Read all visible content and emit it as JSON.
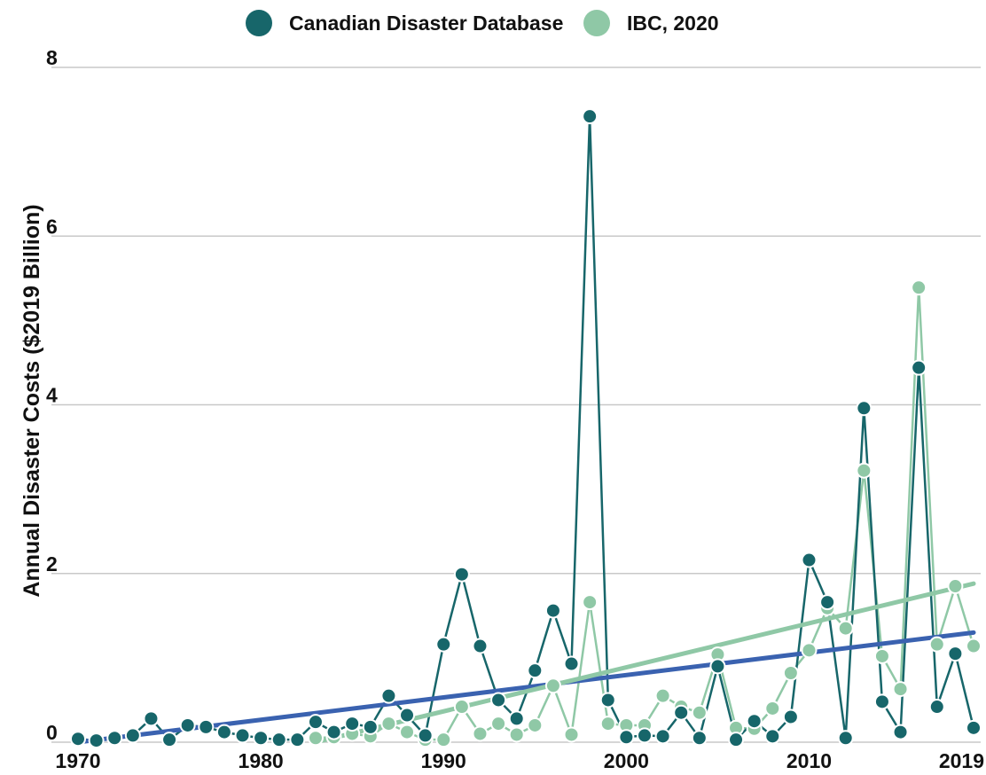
{
  "chart_data": {
    "type": "line",
    "title": "",
    "xlabel": "",
    "ylabel": "Annual Disaster Costs ($2019 Billion)",
    "xlim": [
      1970,
      2019
    ],
    "ylim": [
      0,
      8
    ],
    "x_ticks": [
      1970,
      1980,
      1990,
      2000,
      2010,
      2019
    ],
    "y_ticks": [
      0,
      2,
      4,
      6,
      8
    ],
    "grid": "horizontal",
    "legend_position": "top",
    "series": [
      {
        "name": "Canadian Disaster Database",
        "color": "#17666a",
        "x": [
          1970,
          1971,
          1972,
          1973,
          1974,
          1975,
          1976,
          1977,
          1978,
          1979,
          1980,
          1981,
          1982,
          1983,
          1984,
          1985,
          1986,
          1987,
          1988,
          1989,
          1990,
          1991,
          1992,
          1993,
          1994,
          1995,
          1996,
          1997,
          1998,
          1999,
          2000,
          2001,
          2002,
          2003,
          2004,
          2005,
          2006,
          2007,
          2008,
          2009,
          2010,
          2011,
          2012,
          2013,
          2014,
          2015,
          2016,
          2017,
          2018,
          2019
        ],
        "values": [
          0.04,
          0.02,
          0.05,
          0.08,
          0.28,
          0.03,
          0.2,
          0.18,
          0.12,
          0.08,
          0.05,
          0.03,
          0.03,
          0.24,
          0.12,
          0.22,
          0.18,
          0.55,
          0.32,
          0.08,
          1.16,
          1.99,
          1.14,
          0.5,
          0.28,
          0.85,
          1.56,
          0.93,
          7.42,
          0.5,
          0.06,
          0.08,
          0.07,
          0.35,
          0.05,
          0.9,
          0.03,
          0.25,
          0.07,
          0.3,
          2.16,
          1.66,
          0.05,
          3.96,
          0.48,
          0.12,
          4.44,
          0.42,
          1.05,
          0.17
        ]
      },
      {
        "name": "IBC, 2020",
        "color": "#8fc8a6",
        "x": [
          1983,
          1984,
          1985,
          1986,
          1987,
          1988,
          1989,
          1990,
          1991,
          1992,
          1993,
          1994,
          1995,
          1996,
          1997,
          1998,
          1999,
          2000,
          2001,
          2002,
          2003,
          2004,
          2005,
          2006,
          2007,
          2008,
          2009,
          2010,
          2011,
          2012,
          2013,
          2014,
          2015,
          2016,
          2017,
          2018,
          2019
        ],
        "values": [
          0.05,
          0.06,
          0.1,
          0.07,
          0.22,
          0.12,
          0.03,
          0.03,
          0.42,
          0.1,
          0.22,
          0.09,
          0.2,
          0.67,
          0.09,
          1.66,
          0.22,
          0.2,
          0.2,
          0.55,
          0.42,
          0.35,
          1.04,
          0.17,
          0.16,
          0.4,
          0.82,
          1.09,
          1.59,
          1.35,
          3.22,
          1.02,
          0.63,
          5.39,
          1.16,
          1.85,
          1.14
        ]
      }
    ],
    "trendlines": [
      {
        "series": "Canadian Disaster Database",
        "color": "#3a62b0",
        "x": [
          1970,
          2019
        ],
        "values": [
          0.0,
          1.3
        ]
      },
      {
        "series": "IBC, 2020",
        "color": "#8fc8a6",
        "x": [
          1983,
          2019
        ],
        "values": [
          0.0,
          1.88
        ]
      }
    ]
  }
}
